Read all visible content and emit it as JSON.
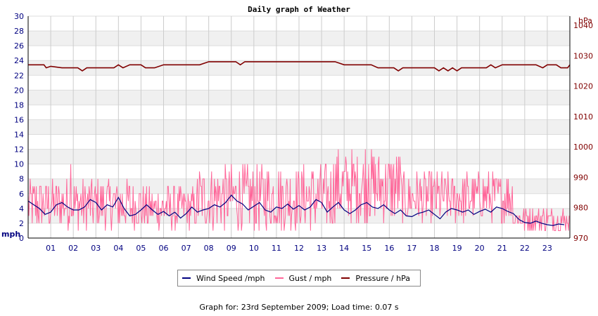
{
  "footer_text": "Graph for: 23rd September 2009; Load time: 0.07 s",
  "colors": {
    "wind": "#000080",
    "gust": "#ff6699",
    "pressure": "#800000",
    "band": "#f0f0f0",
    "grid": "#cccccc"
  },
  "chart_data": {
    "type": "line",
    "title": "Daily graph of Weather",
    "x_label": "",
    "x_ticks": [
      "01",
      "02",
      "03",
      "04",
      "05",
      "06",
      "07",
      "08",
      "09",
      "10",
      "11",
      "12",
      "13",
      "14",
      "15",
      "16",
      "17",
      "18",
      "19",
      "20",
      "21",
      "22",
      "23"
    ],
    "x_range": [
      0,
      24
    ],
    "y_left": {
      "label": "mph",
      "range": [
        0,
        30
      ],
      "ticks": [
        0,
        2,
        4,
        6,
        8,
        10,
        12,
        14,
        16,
        18,
        20,
        22,
        24,
        26,
        28,
        30
      ]
    },
    "y_right": {
      "label": "hPa",
      "range": [
        970,
        1043
      ],
      "ticks": [
        970,
        980,
        990,
        1000,
        1010,
        1020,
        1030,
        1040
      ]
    },
    "grid": true,
    "legend_position": "bottom",
    "series": [
      {
        "name": "Wind Speed /mph",
        "axis": "left",
        "x": [
          0,
          0.25,
          0.5,
          0.75,
          1,
          1.25,
          1.5,
          1.75,
          2,
          2.25,
          2.5,
          2.75,
          3,
          3.25,
          3.5,
          3.75,
          4,
          4.25,
          4.5,
          4.75,
          5,
          5.25,
          5.5,
          5.75,
          6,
          6.25,
          6.5,
          6.75,
          7,
          7.25,
          7.5,
          7.75,
          8,
          8.25,
          8.5,
          8.75,
          9,
          9.25,
          9.5,
          9.75,
          10,
          10.25,
          10.5,
          10.75,
          11,
          11.25,
          11.5,
          11.75,
          12,
          12.25,
          12.5,
          12.75,
          13,
          13.25,
          13.5,
          13.75,
          14,
          14.25,
          14.5,
          14.75,
          15,
          15.25,
          15.5,
          15.75,
          16,
          16.25,
          16.5,
          16.75,
          17,
          17.25,
          17.5,
          17.75,
          18,
          18.25,
          18.5,
          18.75,
          19,
          19.25,
          19.5,
          19.75,
          20,
          20.25,
          20.5,
          20.75,
          21,
          21.25,
          21.5,
          21.75,
          22,
          22.25,
          22.5,
          22.75,
          23,
          23.25,
          23.5,
          23.75
        ],
        "values": [
          5.0,
          4.5,
          4.0,
          3.2,
          3.5,
          4.5,
          4.8,
          4.2,
          3.8,
          3.8,
          4.2,
          5.2,
          4.8,
          3.8,
          4.5,
          4.2,
          5.5,
          4.0,
          3.0,
          3.2,
          3.8,
          4.5,
          3.8,
          3.2,
          3.6,
          3.0,
          3.5,
          2.7,
          3.3,
          4.2,
          3.5,
          3.8,
          4.0,
          4.5,
          4.2,
          4.8,
          5.8,
          5.0,
          4.6,
          3.8,
          4.3,
          4.8,
          3.8,
          3.5,
          4.2,
          4.0,
          4.6,
          3.9,
          4.4,
          3.8,
          4.2,
          5.2,
          4.8,
          3.5,
          4.2,
          4.8,
          3.8,
          3.3,
          3.8,
          4.5,
          4.8,
          4.2,
          4.0,
          4.5,
          3.8,
          3.3,
          3.8,
          3.0,
          2.9,
          3.3,
          3.5,
          3.8,
          3.2,
          2.6,
          3.5,
          4.0,
          3.8,
          3.5,
          3.8,
          3.2,
          3.6,
          3.9,
          3.5,
          4.2,
          4.0,
          3.6,
          3.3,
          2.5,
          2.1,
          2.0,
          2.3,
          2.0,
          1.8,
          1.7,
          1.9,
          1.8
        ]
      },
      {
        "name": "Gust / mph",
        "axis": "left",
        "x_range": [
          0,
          24
        ],
        "segments": [
          {
            "from": 0,
            "to": 5,
            "min": 1,
            "max": 8
          },
          {
            "from": 5,
            "to": 7.5,
            "min": 1,
            "max": 7
          },
          {
            "from": 7.5,
            "to": 13.5,
            "min": 1,
            "max": 10
          },
          {
            "from": 13.5,
            "to": 16.5,
            "min": 2,
            "max": 12
          },
          {
            "from": 16.5,
            "to": 21.5,
            "min": 2,
            "max": 9
          },
          {
            "from": 21.5,
            "to": 24,
            "min": 1,
            "max": 4
          }
        ],
        "peaks": [
          {
            "x": 1.9,
            "value": 10
          },
          {
            "x": 14.95,
            "value": 12
          },
          {
            "x": 15.1,
            "value": 10
          }
        ]
      },
      {
        "name": "Pressure / hPa",
        "axis": "right",
        "x": [
          0,
          0.7,
          0.8,
          1.0,
          1.5,
          2.0,
          2.2,
          2.4,
          2.6,
          3.0,
          3.8,
          4.0,
          4.2,
          4.5,
          5.0,
          5.2,
          5.6,
          6.0,
          6.5,
          7.0,
          7.6,
          8.0,
          8.5,
          9.0,
          9.2,
          9.4,
          9.6,
          10.0,
          11.0,
          12.0,
          12.5,
          13.0,
          13.6,
          14.0,
          14.5,
          15.0,
          15.2,
          15.5,
          16.0,
          16.2,
          16.4,
          16.6,
          17.0,
          17.5,
          18.0,
          18.2,
          18.4,
          18.6,
          18.8,
          19.0,
          19.2,
          19.5,
          20.0,
          20.3,
          20.5,
          20.7,
          21.0,
          21.5,
          22.0,
          22.5,
          22.8,
          23.0,
          23.4,
          23.6,
          23.9,
          24.0
        ],
        "values": [
          1027,
          1027,
          1026,
          1026.5,
          1026,
          1026,
          1026,
          1025,
          1026,
          1026,
          1026,
          1027,
          1026,
          1027,
          1027,
          1026,
          1026,
          1027,
          1027,
          1027,
          1027,
          1028,
          1028,
          1028,
          1028,
          1027,
          1028,
          1028,
          1028,
          1028,
          1028,
          1028,
          1028,
          1027,
          1027,
          1027,
          1027,
          1026,
          1026,
          1026,
          1025,
          1026,
          1026,
          1026,
          1026,
          1025,
          1026,
          1025,
          1026,
          1025,
          1026,
          1026,
          1026,
          1026,
          1027,
          1026,
          1027,
          1027,
          1027,
          1027,
          1026,
          1027,
          1027,
          1026,
          1026,
          1027
        ]
      }
    ]
  },
  "legend": [
    {
      "label": "Wind Speed /mph",
      "color_key": "wind"
    },
    {
      "label": "Gust / mph",
      "color_key": "gust"
    },
    {
      "label": "Pressure / hPa",
      "color_key": "pressure"
    }
  ]
}
